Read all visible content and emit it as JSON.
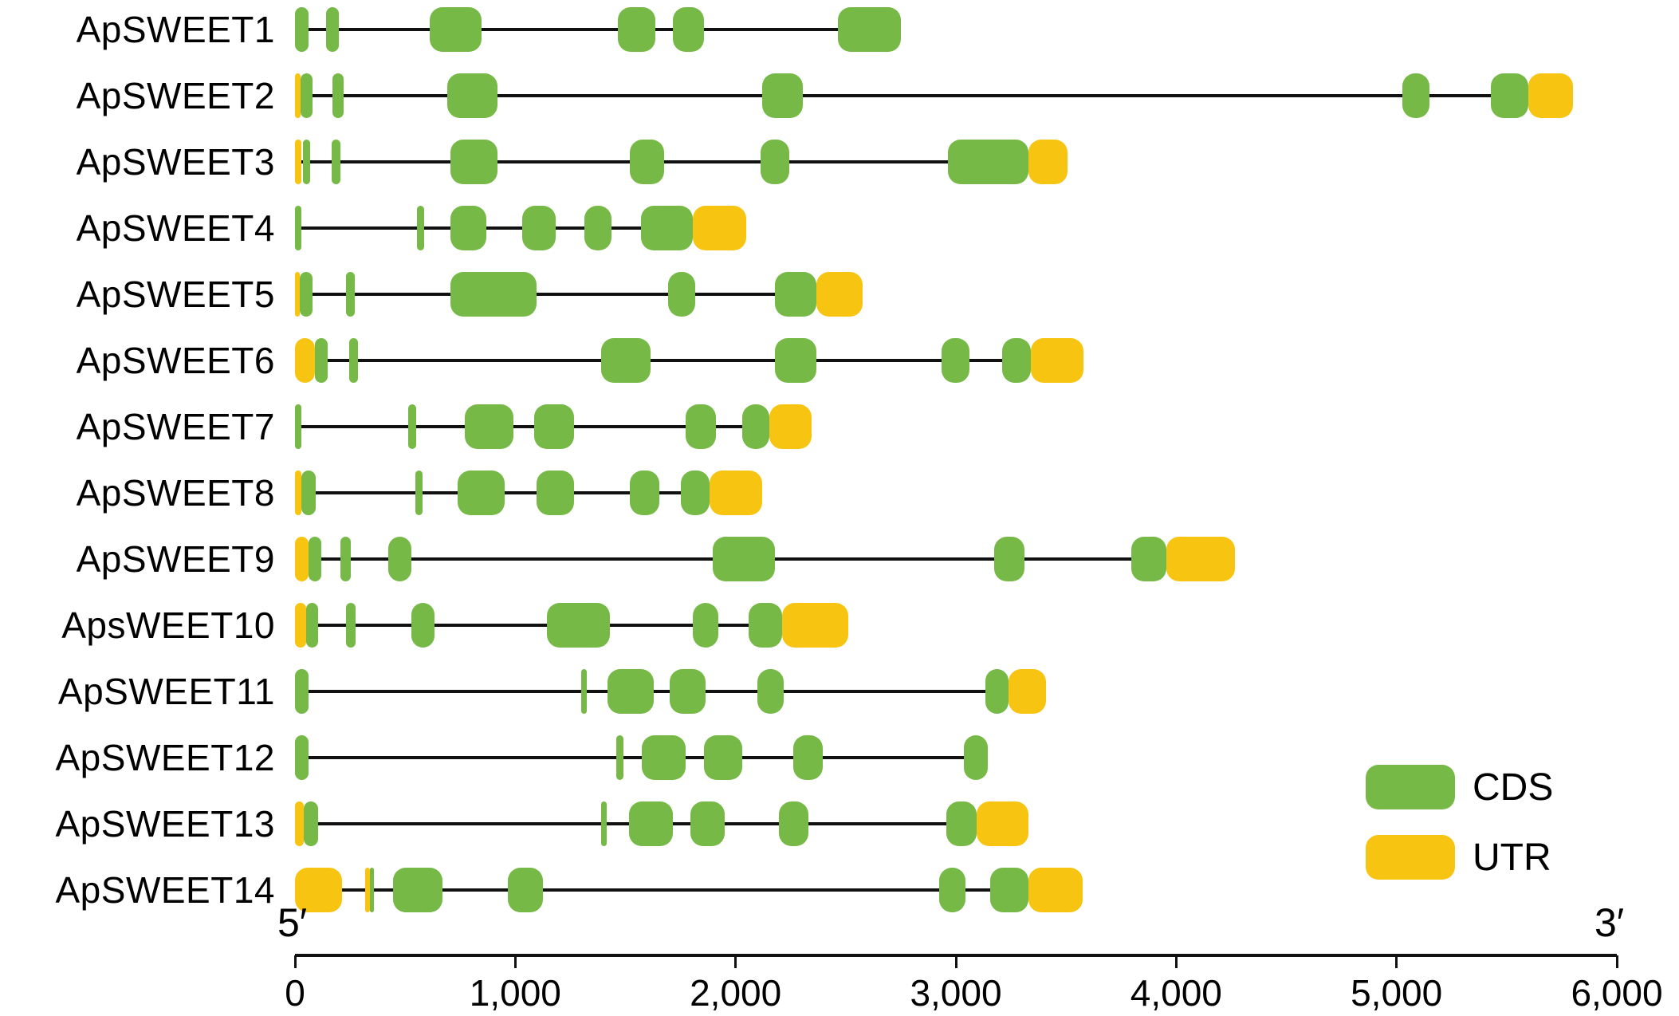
{
  "figure": {
    "axis": {
      "five_prime": "5′",
      "three_prime": "3′",
      "tick_labels": [
        "0",
        "1,000",
        "2,000",
        "3,000",
        "4,000",
        "5,000",
        "6,000"
      ],
      "tick_values": [
        0,
        1000,
        2000,
        3000,
        4000,
        5000,
        6000
      ],
      "min": 0,
      "max": 6000
    },
    "legend": [
      {
        "label": "CDS",
        "color": "#76B947"
      },
      {
        "label": "UTR",
        "color": "#F8C412"
      }
    ]
  },
  "chart_data": {
    "type": "gene-structure",
    "unit": "bp",
    "xlim": [
      0,
      6000
    ],
    "colors": {
      "cds": "#76B947",
      "utr": "#F8C412",
      "intron": "#111111"
    },
    "genes": [
      {
        "name": "ApSWEET1",
        "length": 2750,
        "cds": [
          [
            0,
            60
          ],
          [
            140,
            200
          ],
          [
            610,
            845
          ],
          [
            1465,
            1635
          ],
          [
            1715,
            1855
          ],
          [
            2465,
            2750
          ]
        ],
        "utr": []
      },
      {
        "name": "ApSWEET2",
        "length": 5800,
        "cds": [
          [
            25,
            80
          ],
          [
            170,
            220
          ],
          [
            690,
            920
          ],
          [
            2120,
            2305
          ],
          [
            5025,
            5150
          ],
          [
            5430,
            5600
          ]
        ],
        "utr": [
          [
            0,
            25
          ],
          [
            5600,
            5800
          ]
        ]
      },
      {
        "name": "ApSWEET3",
        "length": 3505,
        "cds": [
          [
            35,
            70
          ],
          [
            165,
            205
          ],
          [
            705,
            920
          ],
          [
            1520,
            1675
          ],
          [
            2115,
            2245
          ],
          [
            2965,
            3330
          ]
        ],
        "utr": [
          [
            0,
            30
          ],
          [
            3330,
            3505
          ]
        ]
      },
      {
        "name": "ApSWEET4",
        "length": 2050,
        "cds": [
          [
            0,
            30
          ],
          [
            555,
            585
          ],
          [
            705,
            870
          ],
          [
            1030,
            1185
          ],
          [
            1315,
            1435
          ],
          [
            1570,
            1805
          ]
        ],
        "utr": [
          [
            1805,
            2050
          ]
        ]
      },
      {
        "name": "ApSWEET5",
        "length": 2575,
        "cds": [
          [
            20,
            80
          ],
          [
            230,
            270
          ],
          [
            705,
            1095
          ],
          [
            1695,
            1815
          ],
          [
            2180,
            2365
          ]
        ],
        "utr": [
          [
            0,
            20
          ],
          [
            2365,
            2575
          ]
        ]
      },
      {
        "name": "ApSWEET6",
        "length": 3580,
        "cds": [
          [
            90,
            150
          ],
          [
            245,
            285
          ],
          [
            1390,
            1615
          ],
          [
            2180,
            2365
          ],
          [
            2935,
            3060
          ],
          [
            3210,
            3340
          ]
        ],
        "utr": [
          [
            0,
            90
          ],
          [
            3340,
            3580
          ]
        ]
      },
      {
        "name": "ApSWEET7",
        "length": 2345,
        "cds": [
          [
            0,
            30
          ],
          [
            515,
            550
          ],
          [
            770,
            990
          ],
          [
            1085,
            1265
          ],
          [
            1775,
            1910
          ],
          [
            2030,
            2155
          ]
        ],
        "utr": [
          [
            2155,
            2345
          ]
        ]
      },
      {
        "name": "ApSWEET8",
        "length": 2120,
        "cds": [
          [
            30,
            95
          ],
          [
            545,
            580
          ],
          [
            740,
            950
          ],
          [
            1095,
            1265
          ],
          [
            1520,
            1655
          ],
          [
            1750,
            1880
          ]
        ],
        "utr": [
          [
            0,
            30
          ],
          [
            1880,
            2120
          ]
        ]
      },
      {
        "name": "ApSWEET9",
        "length": 4265,
        "cds": [
          [
            60,
            120
          ],
          [
            205,
            255
          ],
          [
            425,
            530
          ],
          [
            1895,
            2180
          ],
          [
            3175,
            3310
          ],
          [
            3795,
            3955
          ]
        ],
        "utr": [
          [
            0,
            60
          ],
          [
            3955,
            4265
          ]
        ]
      },
      {
        "name": "ApsWEET10",
        "length": 2510,
        "cds": [
          [
            50,
            105
          ],
          [
            230,
            275
          ],
          [
            530,
            635
          ],
          [
            1145,
            1430
          ],
          [
            1805,
            1920
          ],
          [
            2060,
            2210
          ]
        ],
        "utr": [
          [
            0,
            50
          ],
          [
            2210,
            2510
          ]
        ]
      },
      {
        "name": "ApSWEET11",
        "length": 3410,
        "cds": [
          [
            0,
            60
          ],
          [
            1300,
            1325
          ],
          [
            1420,
            1630
          ],
          [
            1700,
            1865
          ],
          [
            2100,
            2220
          ],
          [
            3135,
            3240
          ]
        ],
        "utr": [
          [
            3240,
            3410
          ]
        ]
      },
      {
        "name": "ApSWEET12",
        "length": 3145,
        "cds": [
          [
            0,
            60
          ],
          [
            1460,
            1490
          ],
          [
            1575,
            1775
          ],
          [
            1855,
            2030
          ],
          [
            2260,
            2395
          ],
          [
            3035,
            3145
          ]
        ],
        "utr": []
      },
      {
        "name": "ApSWEET13",
        "length": 3330,
        "cds": [
          [
            40,
            105
          ],
          [
            1390,
            1415
          ],
          [
            1515,
            1715
          ],
          [
            1795,
            1950
          ],
          [
            2195,
            2330
          ],
          [
            2955,
            3095
          ]
        ],
        "utr": [
          [
            0,
            40
          ],
          [
            3095,
            3330
          ]
        ]
      },
      {
        "name": "ApSWEET14",
        "length": 3575,
        "cds": [
          [
            340,
            360
          ],
          [
            445,
            670
          ],
          [
            965,
            1125
          ],
          [
            2925,
            3045
          ],
          [
            3155,
            3330
          ]
        ],
        "utr": [
          [
            0,
            215
          ],
          [
            320,
            340
          ],
          [
            3330,
            3575
          ]
        ]
      }
    ]
  }
}
